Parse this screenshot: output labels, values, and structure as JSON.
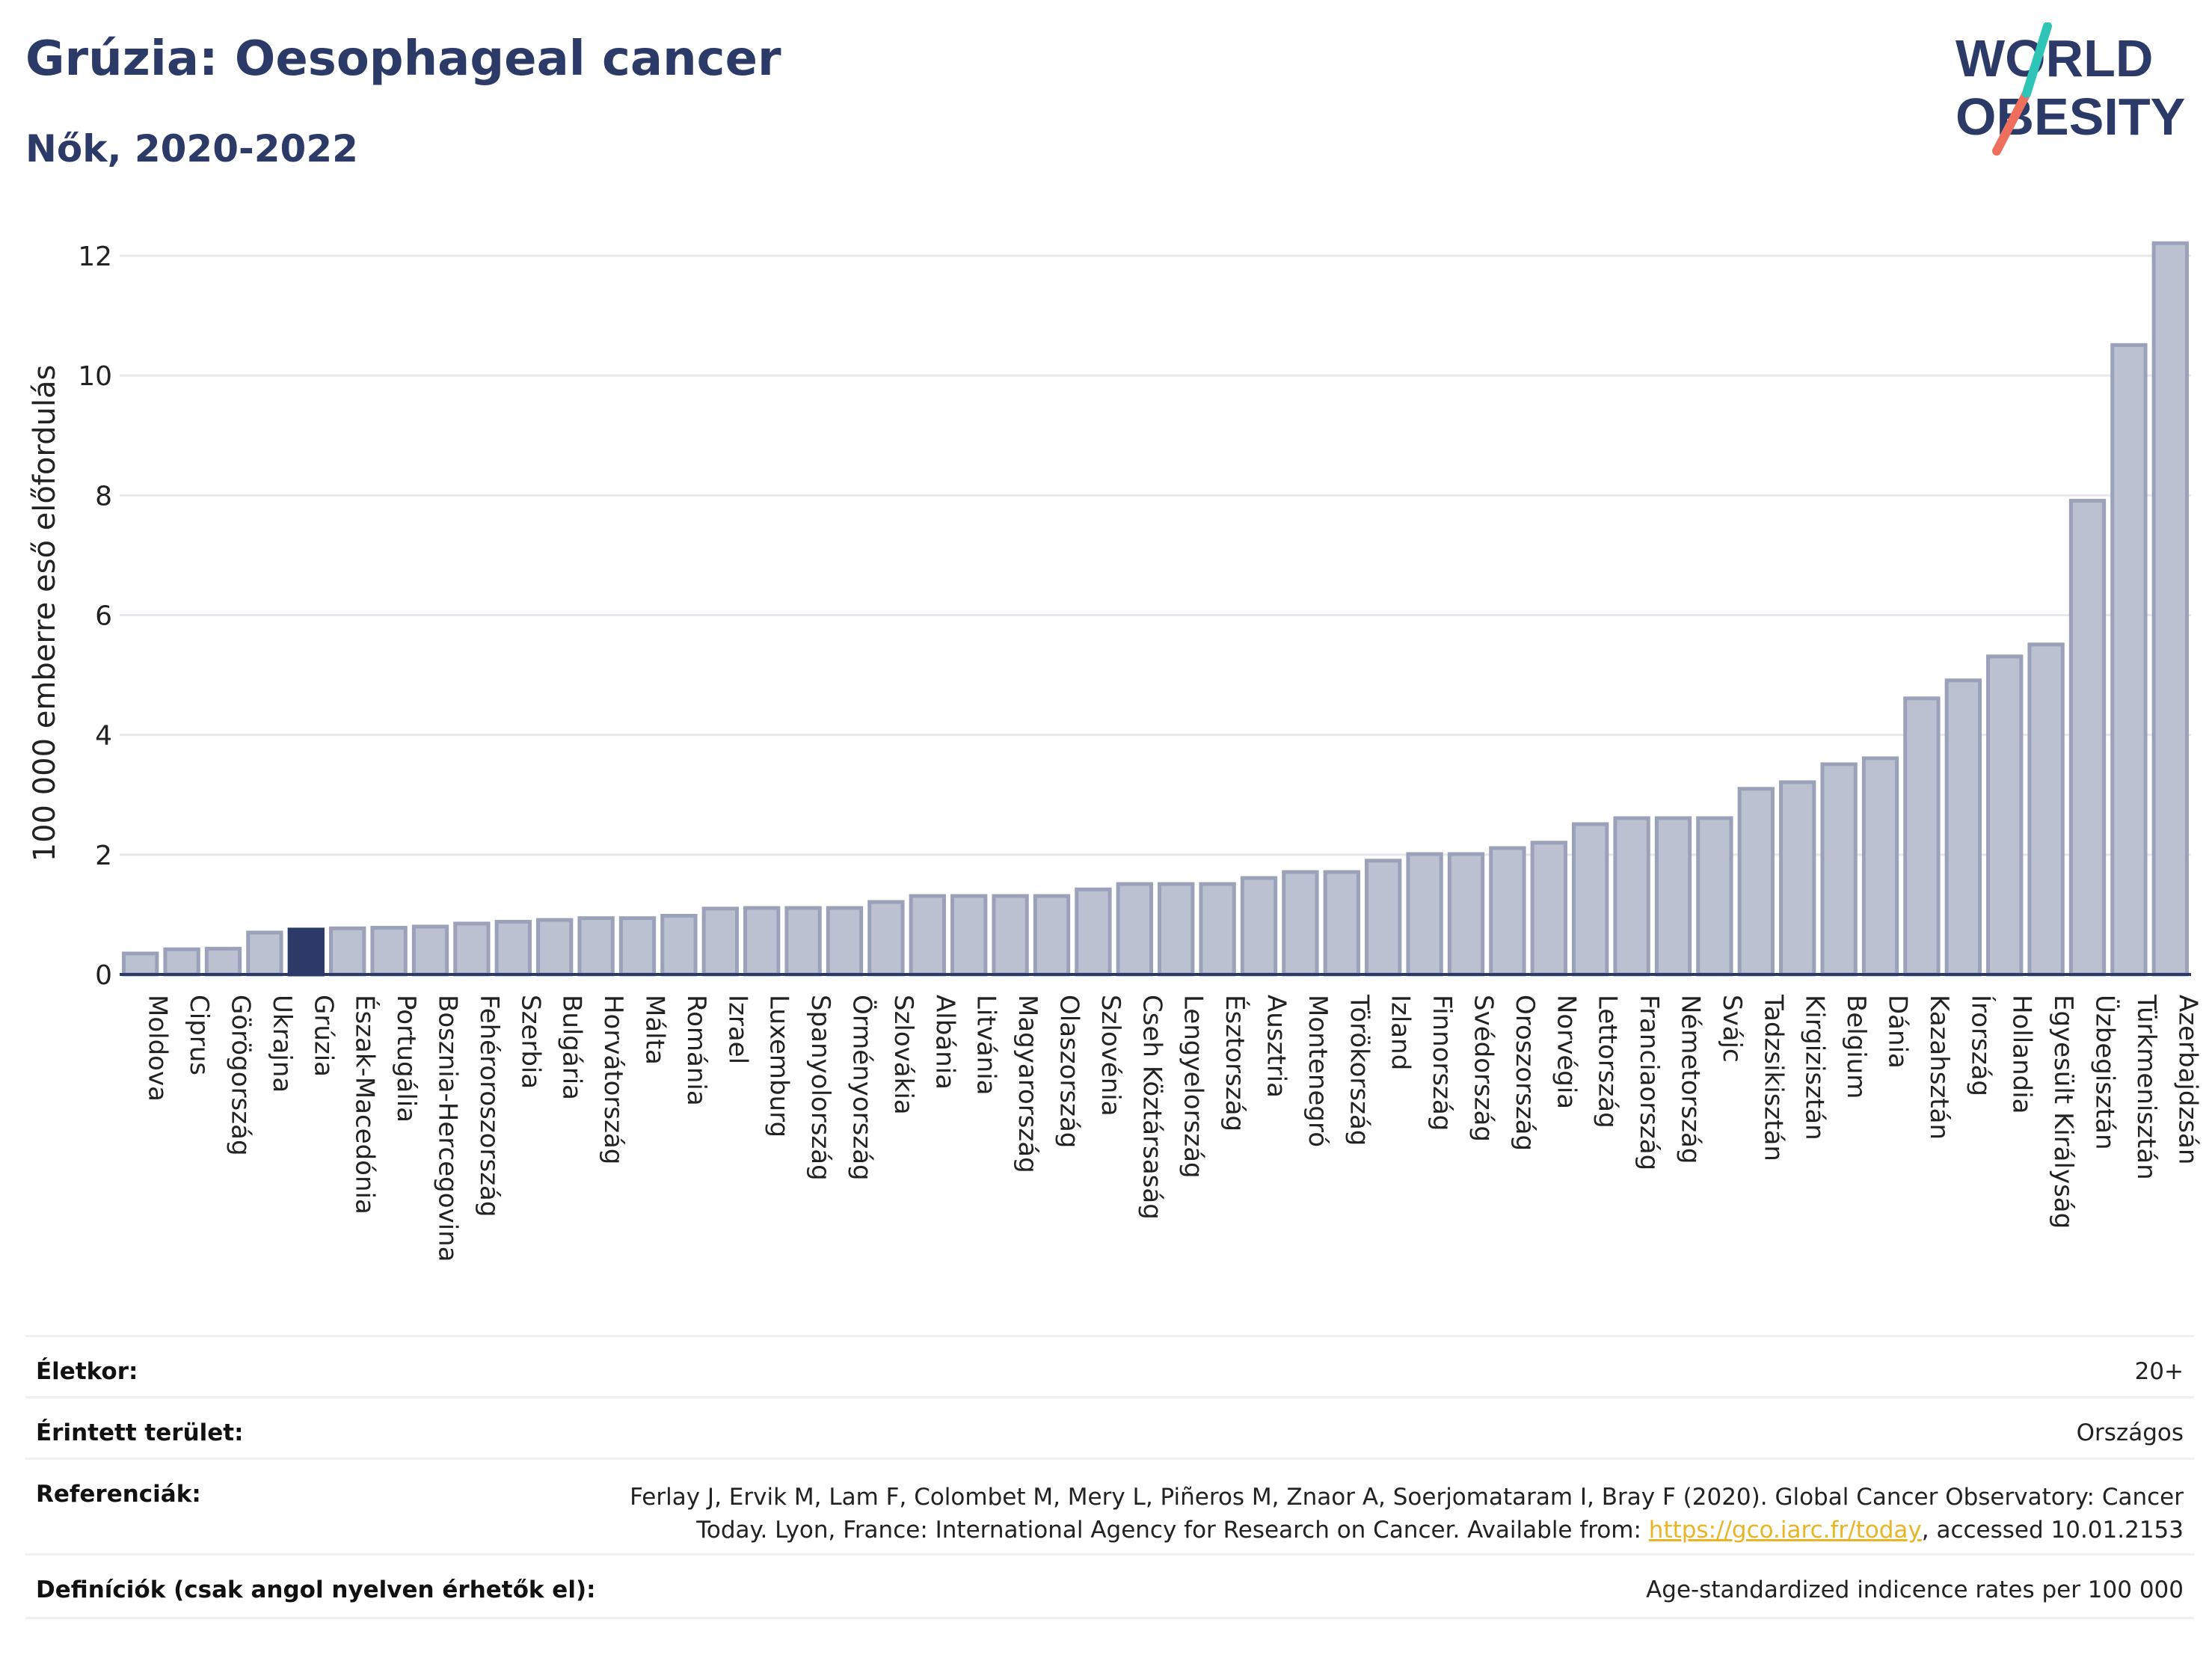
{
  "header": {
    "title": "Grúzia: Oesophageal cancer",
    "subtitle": "Nők, 2020-2022"
  },
  "logo": {
    "line1": "WORLD",
    "line2": "OBESITY"
  },
  "colors": {
    "title": "#2b3a67",
    "bar": "#bcc1d1",
    "bar_stroke": "#9aa1b9",
    "highlight": "#2b3a67",
    "link": "#e9b526",
    "logo_teal": "#2ec4b6",
    "logo_coral": "#ef6f5e"
  },
  "chart_data": {
    "type": "bar",
    "ylabel": "100 000 emberre eső előfordulás",
    "ylim": [
      0,
      12.3
    ],
    "yticks": [
      0,
      2,
      4,
      6,
      8,
      10,
      12
    ],
    "grid": true,
    "highlight": "Grúzia",
    "categories": [
      "Moldova",
      "Ciprus",
      "Görögország",
      "Ukrajna",
      "Grúzia",
      "Észak-Macedónia",
      "Portugália",
      "Bosznia-Hercegovina",
      "Fehéroroszország",
      "Szerbia",
      "Bulgária",
      "Horvátország",
      "Málta",
      "Románia",
      "Izrael",
      "Luxemburg",
      "Spanyolország",
      "Örményország",
      "Szlovákia",
      "Albánia",
      "Litvánia",
      "Magyarország",
      "Olaszország",
      "Szlovénia",
      "Cseh Köztársaság",
      "Lengyelország",
      "Észtország",
      "Ausztria",
      "Montenegró",
      "Törökország",
      "Izland",
      "Finnország",
      "Svédország",
      "Oroszország",
      "Norvégia",
      "Lettország",
      "Franciaország",
      "Németország",
      "Svájc",
      "Tadzsikisztán",
      "Kirgizisztán",
      "Belgium",
      "Dánia",
      "Kazahsztán",
      "Írország",
      "Hollandia",
      "Egyesült Királyság",
      "Üzbegisztán",
      "Türkmenisztán",
      "Azerbajdzsán"
    ],
    "values": [
      0.35,
      0.42,
      0.43,
      0.7,
      0.75,
      0.77,
      0.78,
      0.8,
      0.85,
      0.88,
      0.91,
      0.94,
      0.94,
      0.98,
      1.1,
      1.11,
      1.11,
      1.11,
      1.21,
      1.31,
      1.31,
      1.31,
      1.31,
      1.42,
      1.51,
      1.51,
      1.51,
      1.61,
      1.71,
      1.71,
      1.9,
      2.01,
      2.01,
      2.11,
      2.2,
      2.51,
      2.61,
      2.61,
      2.61,
      3.1,
      3.21,
      3.51,
      3.61,
      4.61,
      4.91,
      5.31,
      5.51,
      7.91,
      10.51,
      12.21
    ]
  },
  "info": {
    "age_label": "Életkor:",
    "age_value": "20+",
    "area_label": "Érintett terület:",
    "area_value": "Országos",
    "ref_label": "Referenciák:",
    "ref_line1": "Ferlay J, Ervik M, Lam F, Colombet M, Mery L, Piñeros M, Znaor A, Soerjomataram I, Bray F (2020). Global Cancer Observatory: Cancer",
    "ref_line2_pre": "Today. Lyon, France: International Agency for Research on Cancer. Available from: ",
    "ref_link": "https://gco.iarc.fr/today",
    "ref_line2_post": ", accessed 10.01.2153",
    "def_label": "Definíciók (csak angol nyelven érhetők el):",
    "def_value": "Age-standardized indicence rates per 100 000"
  }
}
